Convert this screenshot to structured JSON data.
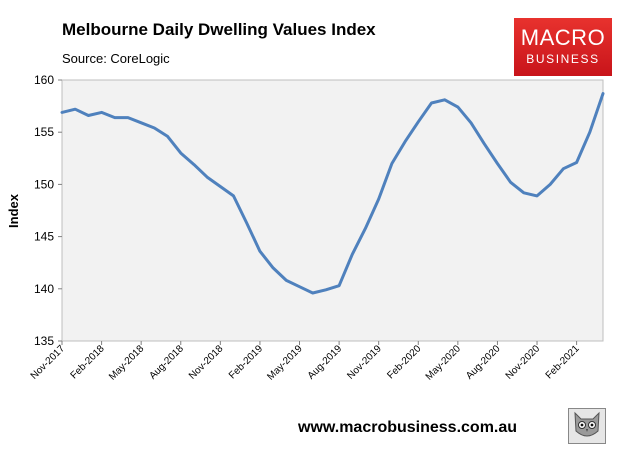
{
  "header": {
    "title": "Melbourne Daily Dwelling Values Index",
    "subtitle": "Source: CoreLogic"
  },
  "logo": {
    "line1": "MACRO",
    "line2": "BUSINESS"
  },
  "footer": {
    "website": "www.macrobusiness.com.au"
  },
  "colors": {
    "line": "#4f81bd",
    "plot_bg": "#f2f2f2",
    "logo_red": "#d9201f"
  },
  "chart_data": {
    "type": "line",
    "title": "Melbourne Daily Dwelling Values Index",
    "subtitle": "Source: CoreLogic",
    "xlabel": "",
    "ylabel": "Index",
    "ylim": [
      135,
      160
    ],
    "yticks": [
      135,
      140,
      145,
      150,
      155,
      160
    ],
    "xticks": [
      "Nov-2017",
      "Feb-2018",
      "May-2018",
      "Aug-2018",
      "Nov-2018",
      "Feb-2019",
      "May-2019",
      "Aug-2019",
      "Nov-2019",
      "Feb-2020",
      "May-2020",
      "Aug-2020",
      "Nov-2020",
      "Feb-2021"
    ],
    "x_start": "Nov-2017",
    "x_end": "Apr-2021",
    "grid": false,
    "series": [
      {
        "points": [
          [
            "Nov-2017",
            156.9
          ],
          [
            "Dec-2017",
            157.2
          ],
          [
            "Jan-2018",
            156.6
          ],
          [
            "Feb-2018",
            156.9
          ],
          [
            "Mar-2018",
            156.4
          ],
          [
            "Apr-2018",
            156.4
          ],
          [
            "May-2018",
            155.9
          ],
          [
            "Jun-2018",
            155.4
          ],
          [
            "Jul-2018",
            154.6
          ],
          [
            "Aug-2018",
            153.0
          ],
          [
            "Sep-2018",
            151.9
          ],
          [
            "Oct-2018",
            150.7
          ],
          [
            "Nov-2018",
            149.8
          ],
          [
            "Dec-2018",
            148.9
          ],
          [
            "Jan-2019",
            146.3
          ],
          [
            "Feb-2019",
            143.6
          ],
          [
            "Mar-2019",
            142.0
          ],
          [
            "Apr-2019",
            140.8
          ],
          [
            "May-2019",
            140.2
          ],
          [
            "Jun-2019",
            139.6
          ],
          [
            "Jul-2019",
            139.9
          ],
          [
            "Aug-2019",
            140.3
          ],
          [
            "Sep-2019",
            143.3
          ],
          [
            "Oct-2019",
            145.8
          ],
          [
            "Nov-2019",
            148.6
          ],
          [
            "Dec-2019",
            152.0
          ],
          [
            "Jan-2020",
            154.1
          ],
          [
            "Feb-2020",
            156.0
          ],
          [
            "Mar-2020",
            157.8
          ],
          [
            "Apr-2020",
            158.1
          ],
          [
            "May-2020",
            157.4
          ],
          [
            "Jun-2020",
            155.9
          ],
          [
            "Jul-2020",
            153.9
          ],
          [
            "Aug-2020",
            152.0
          ],
          [
            "Sep-2020",
            150.2
          ],
          [
            "Oct-2020",
            149.2
          ],
          [
            "Nov-2020",
            148.9
          ],
          [
            "Dec-2020",
            150.0
          ],
          [
            "Jan-2021",
            151.5
          ],
          [
            "Feb-2021",
            152.1
          ],
          [
            "Mar-2021",
            155.0
          ],
          [
            "Apr-2021",
            158.7
          ]
        ]
      }
    ]
  }
}
